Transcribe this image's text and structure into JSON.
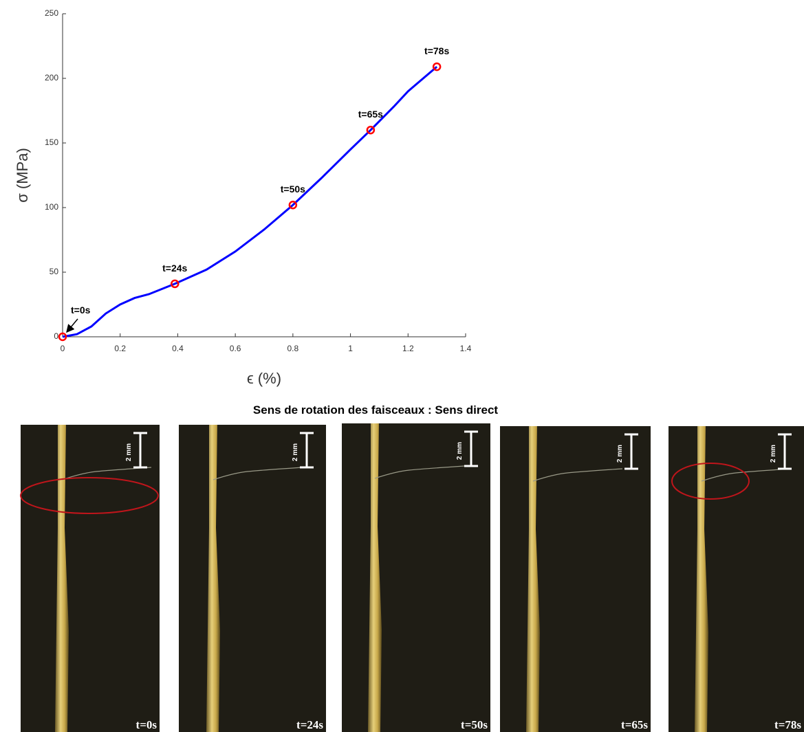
{
  "chart_data": {
    "type": "line",
    "xlabel": "ϵ (%)",
    "ylabel": "σ (MPa)",
    "x": [
      0,
      0.05,
      0.1,
      0.15,
      0.2,
      0.25,
      0.3,
      0.39,
      0.5,
      0.6,
      0.7,
      0.8,
      0.9,
      1.0,
      1.07,
      1.15,
      1.2,
      1.3
    ],
    "series": [
      {
        "color": "#0000ff",
        "values": [
          0,
          2,
          8,
          18,
          25,
          30,
          33,
          41,
          52,
          66,
          83,
          102,
          123,
          145,
          160,
          178,
          190,
          209
        ]
      }
    ],
    "markers": {
      "color": "#ff0000",
      "x": [
        0,
        0.39,
        0.8,
        1.07,
        1.3
      ],
      "values": [
        0,
        41,
        102,
        160,
        209
      ],
      "labels": [
        "t=0s",
        "t=24s",
        "t=50s",
        "t=65s",
        "t=78s"
      ]
    },
    "xlim": [
      0,
      1.4
    ],
    "xticks": [
      0,
      0.2,
      0.4,
      0.6,
      0.8,
      1,
      1.2,
      1.4
    ],
    "ylim": [
      0,
      250
    ],
    "yticks": [
      0,
      50,
      100,
      150,
      200,
      250
    ]
  },
  "images": {
    "title": "Sens de rotation des faisceaux : Sens direct",
    "panels": [
      {
        "label": "t=0s",
        "scale": "2 mm"
      },
      {
        "label": "t=24s",
        "scale": "2 mm"
      },
      {
        "label": "t=50s",
        "scale": "2 mm"
      },
      {
        "label": "t=65s",
        "scale": "2 mm"
      },
      {
        "label": "t=78s",
        "scale": "2 mm"
      }
    ]
  }
}
